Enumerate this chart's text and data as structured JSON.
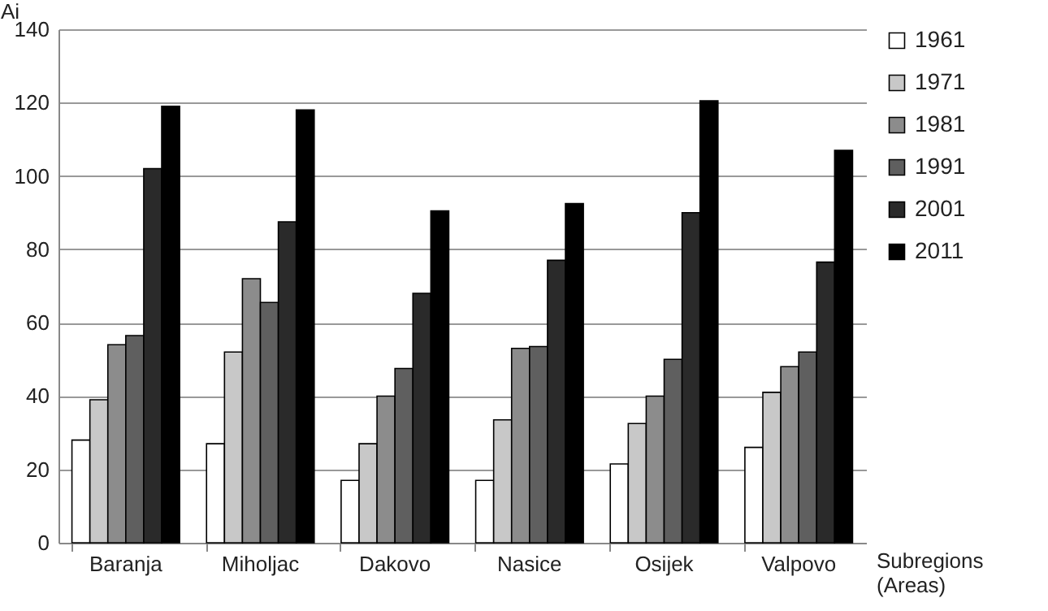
{
  "chart_data": {
    "type": "bar",
    "ylabel": "Ai",
    "xlabel": "Subregions\n(Areas)",
    "categories": [
      "Baranja",
      "Miholjac",
      "Dakovo",
      "Nasice",
      "Osijek",
      "Valpovo"
    ],
    "series": [
      {
        "name": "1961",
        "color": "#ffffff",
        "values": [
          28,
          27,
          17,
          17,
          21.5,
          26
        ]
      },
      {
        "name": "1971",
        "color": "#c8c8c8",
        "values": [
          39,
          52,
          27,
          33.5,
          32.5,
          41
        ]
      },
      {
        "name": "1981",
        "color": "#8c8c8c",
        "values": [
          54,
          72,
          40,
          53,
          40,
          48
        ]
      },
      {
        "name": "1991",
        "color": "#5f5f5f",
        "values": [
          56.5,
          65.5,
          47.5,
          53.5,
          50,
          52
        ]
      },
      {
        "name": "2001",
        "color": "#2a2a2a",
        "values": [
          102,
          87.5,
          68,
          77,
          90,
          76.5
        ]
      },
      {
        "name": "2011",
        "color": "#000000",
        "values": [
          119,
          118,
          90.5,
          92.5,
          120.5,
          107
        ]
      }
    ],
    "ylim": [
      0,
      140
    ],
    "yticks": [
      0,
      20,
      40,
      60,
      80,
      100,
      120,
      140
    ],
    "grid": "y",
    "legend": "top right"
  }
}
